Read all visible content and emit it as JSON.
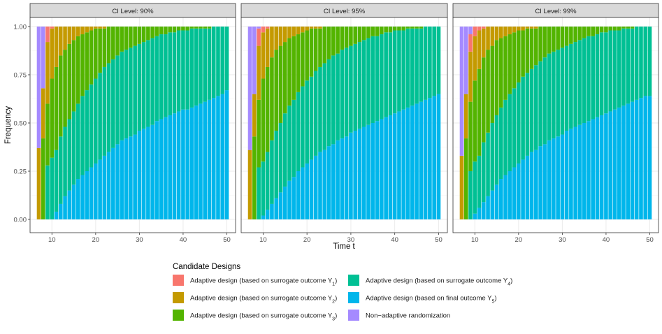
{
  "chart_data": {
    "type": "bar",
    "stacked": true,
    "facet_label_prefix": "CI Level: ",
    "facets": [
      "90%",
      "95%",
      "99%"
    ],
    "xlabel": "Time t",
    "ylabel": "Frequency",
    "xlim": [
      5,
      52
    ],
    "ylim": [
      0,
      1
    ],
    "x_ticks": [
      10,
      20,
      30,
      40,
      50
    ],
    "y_ticks": [
      "0.00",
      "0.25",
      "0.50",
      "0.75",
      "1.00"
    ],
    "grid": true,
    "legend_position": "bottom",
    "legend_title": "Candidate Designs",
    "legend": [
      {
        "key": "s1",
        "label": "Adaptive design (based on surrogate outcome Y",
        "sub": "1",
        "suffix": ")",
        "color": "#F8766D"
      },
      {
        "key": "s2",
        "label": "Adaptive design (based on surrogate outcome Y",
        "sub": "2",
        "suffix": ")",
        "color": "#C49A00"
      },
      {
        "key": "s3",
        "label": "Adaptive design (based on surrogate outcome Y",
        "sub": "3",
        "suffix": ")",
        "color": "#53B400"
      },
      {
        "key": "s4",
        "label": "Adaptive design (based on surrogate outcome Y",
        "sub": "4",
        "suffix": ")",
        "color": "#00C094"
      },
      {
        "key": "s5",
        "label": "Adaptive design (based on final outcome Y",
        "sub": "5",
        "suffix": ")",
        "color": "#00B6EB"
      },
      {
        "key": "nr",
        "label": "Non−adaptive randomization",
        "sub": "",
        "suffix": "",
        "color": "#A58AFF"
      }
    ],
    "x": [
      7,
      8,
      9,
      10,
      11,
      12,
      13,
      14,
      15,
      16,
      17,
      18,
      19,
      20,
      21,
      22,
      23,
      24,
      25,
      26,
      27,
      28,
      29,
      30,
      31,
      32,
      33,
      34,
      35,
      36,
      37,
      38,
      39,
      40,
      41,
      42,
      43,
      44,
      45,
      46,
      47,
      48,
      49,
      50
    ],
    "series_by_facet": [
      {
        "facet": "90%",
        "final_outcome_Y5": [
          0,
          0,
          0,
          0,
          0.04,
          0.08,
          0.12,
          0.15,
          0.18,
          0.21,
          0.23,
          0.25,
          0.27,
          0.29,
          0.31,
          0.33,
          0.35,
          0.37,
          0.39,
          0.41,
          0.42,
          0.43,
          0.44,
          0.46,
          0.47,
          0.48,
          0.49,
          0.51,
          0.52,
          0.53,
          0.54,
          0.55,
          0.56,
          0.57,
          0.57,
          0.58,
          0.59,
          0.6,
          0.61,
          0.62,
          0.63,
          0.64,
          0.65,
          0.67
        ],
        "cumulative_top": {
          "nr": [
            1,
            1,
            1,
            1,
            1,
            1,
            1,
            1,
            1,
            1,
            1,
            1,
            1,
            1,
            1,
            1,
            1,
            1,
            1,
            1,
            1,
            1,
            1,
            1,
            1,
            1,
            1,
            1,
            1,
            1,
            1,
            1,
            1,
            1,
            1,
            1,
            1,
            1,
            1,
            1,
            1,
            1,
            1,
            1
          ],
          "s1": [
            0.37,
            0.68,
            1,
            1,
            1,
            1,
            1,
            1,
            1,
            1,
            1,
            1,
            1,
            1,
            1,
            1,
            1,
            1,
            1,
            1,
            1,
            1,
            1,
            1,
            1,
            1,
            1,
            1,
            1,
            1,
            1,
            1,
            1,
            1,
            1,
            1,
            1,
            1,
            1,
            1,
            1,
            1,
            1,
            1
          ],
          "s2": [
            0.37,
            0.68,
            0.92,
            0.99,
            1,
            1,
            1,
            1,
            1,
            1,
            1,
            1,
            1,
            1,
            1,
            1,
            1,
            1,
            1,
            1,
            1,
            1,
            1,
            1,
            1,
            1,
            1,
            1,
            1,
            1,
            1,
            1,
            1,
            1,
            1,
            1,
            1,
            1,
            1,
            1,
            1,
            1,
            1,
            1
          ],
          "s3": [
            0,
            0.42,
            0.6,
            0.73,
            0.79,
            0.85,
            0.88,
            0.91,
            0.93,
            0.95,
            0.96,
            0.97,
            0.98,
            0.99,
            0.99,
            0.99,
            1,
            1,
            1,
            1,
            1,
            1,
            1,
            1,
            1,
            1,
            1,
            1,
            1,
            1,
            1,
            1,
            1,
            1,
            1,
            1,
            1,
            1,
            1,
            1,
            1,
            1,
            1,
            1
          ],
          "s4": [
            0,
            0.0,
            0.28,
            0.32,
            0.36,
            0.43,
            0.48,
            0.52,
            0.56,
            0.6,
            0.64,
            0.67,
            0.7,
            0.73,
            0.76,
            0.79,
            0.81,
            0.83,
            0.85,
            0.87,
            0.88,
            0.89,
            0.9,
            0.91,
            0.92,
            0.93,
            0.94,
            0.95,
            0.96,
            0.96,
            0.97,
            0.97,
            0.98,
            0.98,
            0.98,
            0.99,
            0.99,
            0.99,
            0.99,
            0.99,
            1,
            1,
            1,
            1
          ]
        }
      },
      {
        "facet": "95%",
        "final_outcome_Y5": [
          0,
          0,
          0,
          0.02,
          0.05,
          0.08,
          0.11,
          0.14,
          0.17,
          0.2,
          0.22,
          0.25,
          0.27,
          0.29,
          0.31,
          0.33,
          0.35,
          0.36,
          0.38,
          0.39,
          0.41,
          0.42,
          0.43,
          0.45,
          0.46,
          0.47,
          0.48,
          0.49,
          0.5,
          0.51,
          0.52,
          0.53,
          0.54,
          0.55,
          0.56,
          0.57,
          0.58,
          0.59,
          0.6,
          0.61,
          0.62,
          0.63,
          0.64,
          0.65
        ],
        "cumulative_top": {
          "nr": [
            1,
            1,
            1,
            1,
            1,
            1,
            1,
            1,
            1,
            1,
            1,
            1,
            1,
            1,
            1,
            1,
            1,
            1,
            1,
            1,
            1,
            1,
            1,
            1,
            1,
            1,
            1,
            1,
            1,
            1,
            1,
            1,
            1,
            1,
            1,
            1,
            1,
            1,
            1,
            1,
            1,
            1,
            1,
            1
          ],
          "s1": [
            0.36,
            0.65,
            0.99,
            1,
            1,
            1,
            1,
            1,
            1,
            1,
            1,
            1,
            1,
            1,
            1,
            1,
            1,
            1,
            1,
            1,
            1,
            1,
            1,
            1,
            1,
            1,
            1,
            1,
            1,
            1,
            1,
            1,
            1,
            1,
            1,
            1,
            1,
            1,
            1,
            1,
            1,
            1,
            1,
            1
          ],
          "s2": [
            0.36,
            0.65,
            0.9,
            0.97,
            0.99,
            1,
            1,
            1,
            1,
            1,
            1,
            1,
            1,
            1,
            1,
            1,
            1,
            1,
            1,
            1,
            1,
            1,
            1,
            1,
            1,
            1,
            1,
            1,
            1,
            1,
            1,
            1,
            1,
            1,
            1,
            1,
            1,
            1,
            1,
            1,
            1,
            1,
            1,
            1
          ],
          "s3": [
            0,
            0.43,
            0.62,
            0.73,
            0.79,
            0.84,
            0.88,
            0.9,
            0.92,
            0.94,
            0.95,
            0.96,
            0.97,
            0.98,
            0.99,
            0.99,
            0.99,
            1,
            1,
            1,
            1,
            1,
            1,
            1,
            1,
            1,
            1,
            1,
            1,
            1,
            1,
            1,
            1,
            1,
            1,
            1,
            1,
            1,
            1,
            1,
            1,
            1,
            1,
            1
          ],
          "s4": [
            0,
            0.0,
            0.27,
            0.3,
            0.35,
            0.41,
            0.46,
            0.5,
            0.55,
            0.59,
            0.62,
            0.66,
            0.69,
            0.72,
            0.74,
            0.77,
            0.79,
            0.81,
            0.83,
            0.85,
            0.86,
            0.88,
            0.89,
            0.9,
            0.91,
            0.92,
            0.93,
            0.94,
            0.95,
            0.95,
            0.96,
            0.97,
            0.97,
            0.98,
            0.98,
            0.98,
            0.99,
            0.99,
            0.99,
            0.99,
            1,
            1,
            1,
            1
          ]
        }
      },
      {
        "facet": "99%",
        "final_outcome_Y5": [
          0,
          0,
          0,
          0.03,
          0.06,
          0.09,
          0.12,
          0.15,
          0.18,
          0.21,
          0.23,
          0.25,
          0.27,
          0.29,
          0.31,
          0.33,
          0.35,
          0.36,
          0.38,
          0.39,
          0.41,
          0.42,
          0.43,
          0.44,
          0.46,
          0.47,
          0.48,
          0.49,
          0.5,
          0.51,
          0.52,
          0.53,
          0.54,
          0.55,
          0.56,
          0.57,
          0.58,
          0.59,
          0.6,
          0.61,
          0.62,
          0.63,
          0.64,
          0.64
        ],
        "cumulative_top": {
          "nr": [
            1,
            1,
            1,
            1,
            1,
            1,
            1,
            1,
            1,
            1,
            1,
            1,
            1,
            1,
            1,
            1,
            1,
            1,
            1,
            1,
            1,
            1,
            1,
            1,
            1,
            1,
            1,
            1,
            1,
            1,
            1,
            1,
            1,
            1,
            1,
            1,
            1,
            1,
            1,
            1,
            1,
            1,
            1,
            1
          ],
          "s1": [
            0.33,
            0.65,
            0.96,
            1,
            1,
            1,
            1,
            1,
            1,
            1,
            1,
            1,
            1,
            1,
            1,
            1,
            1,
            1,
            1,
            1,
            1,
            1,
            1,
            1,
            1,
            1,
            1,
            1,
            1,
            1,
            1,
            1,
            1,
            1,
            1,
            1,
            1,
            1,
            1,
            1,
            1,
            1,
            1,
            1
          ],
          "s2": [
            0.33,
            0.65,
            0.87,
            0.95,
            0.98,
            0.99,
            1,
            1,
            1,
            1,
            1,
            1,
            1,
            1,
            1,
            1,
            1,
            1,
            1,
            1,
            1,
            1,
            1,
            1,
            1,
            1,
            1,
            1,
            1,
            1,
            1,
            1,
            1,
            1,
            1,
            1,
            1,
            1,
            1,
            1,
            1,
            1,
            1,
            1
          ],
          "s3": [
            0,
            0.42,
            0.61,
            0.72,
            0.78,
            0.84,
            0.88,
            0.9,
            0.93,
            0.94,
            0.95,
            0.96,
            0.97,
            0.98,
            0.98,
            0.99,
            0.99,
            0.99,
            1,
            1,
            1,
            1,
            1,
            1,
            1,
            1,
            1,
            1,
            1,
            1,
            1,
            1,
            1,
            1,
            1,
            1,
            1,
            1,
            1,
            1,
            1,
            1,
            1,
            1
          ],
          "s4": [
            0,
            0.0,
            0.25,
            0.3,
            0.33,
            0.4,
            0.45,
            0.5,
            0.54,
            0.58,
            0.62,
            0.65,
            0.68,
            0.71,
            0.74,
            0.76,
            0.78,
            0.8,
            0.82,
            0.84,
            0.86,
            0.87,
            0.88,
            0.89,
            0.9,
            0.91,
            0.92,
            0.93,
            0.94,
            0.95,
            0.95,
            0.96,
            0.97,
            0.97,
            0.98,
            0.98,
            0.98,
            0.99,
            0.99,
            0.99,
            1,
            1,
            1,
            1
          ]
        }
      }
    ]
  }
}
